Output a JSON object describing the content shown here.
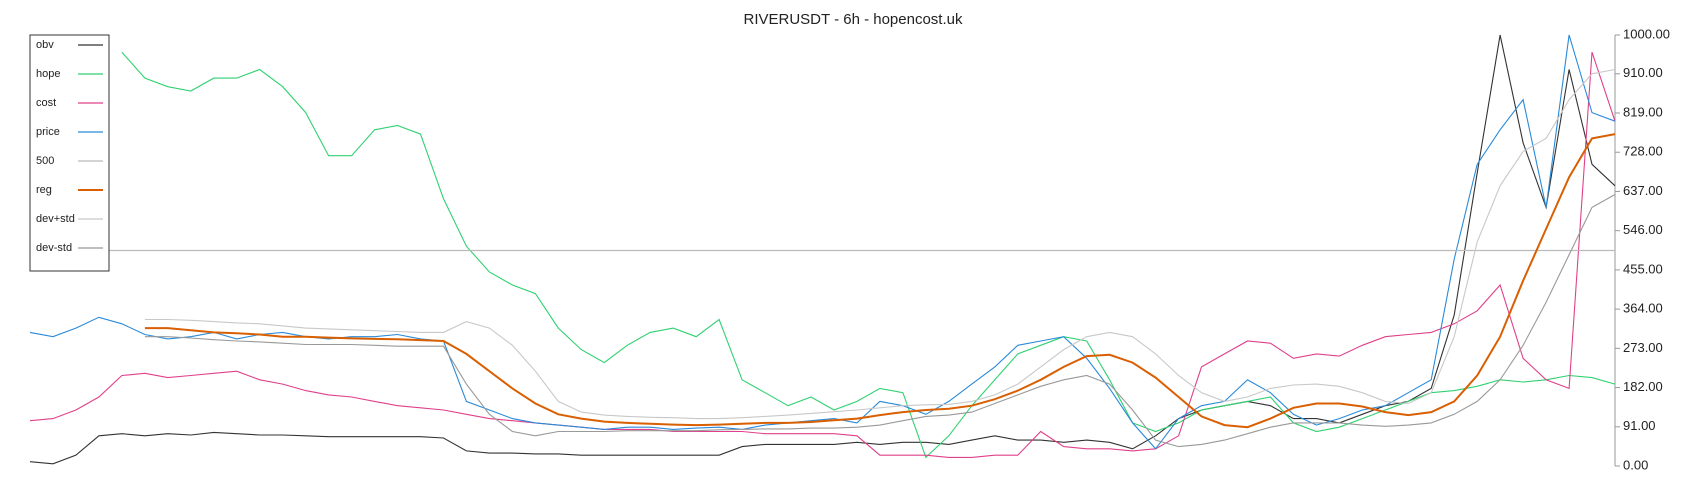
{
  "chart_data": {
    "type": "line",
    "title": "RIVERUSDT - 6h - hopencost.uk",
    "ylim": [
      0,
      1000
    ],
    "yticks": [
      {
        "value": 0,
        "label": "0.00"
      },
      {
        "value": 91,
        "label": "91.00"
      },
      {
        "value": 182,
        "label": "182.00"
      },
      {
        "value": 273,
        "label": "273.00"
      },
      {
        "value": 364,
        "label": "364.00"
      },
      {
        "value": 455,
        "label": "455.00"
      },
      {
        "value": 546,
        "label": "546.00"
      },
      {
        "value": 637,
        "label": "637.00"
      },
      {
        "value": 728,
        "label": "728.00"
      },
      {
        "value": 819,
        "label": "819.00"
      },
      {
        "value": 910,
        "label": "910.00"
      },
      {
        "value": 1000,
        "label": "1000.00"
      }
    ],
    "legend": "upper-left",
    "series": [
      {
        "name": "obv",
        "color": "#333333",
        "values": [
          10,
          5,
          25,
          70,
          75,
          70,
          75,
          72,
          78,
          75,
          72,
          72,
          70,
          68,
          68,
          68,
          68,
          68,
          65,
          35,
          30,
          30,
          28,
          28,
          25,
          25,
          25,
          25,
          25,
          25,
          25,
          45,
          50,
          50,
          50,
          50,
          55,
          50,
          55,
          55,
          50,
          60,
          70,
          60,
          60,
          55,
          60,
          55,
          40,
          70,
          110,
          130,
          140,
          150,
          140,
          110,
          110,
          100,
          120,
          140,
          150,
          180,
          350,
          680,
          1000,
          750,
          600,
          920,
          700,
          650
        ]
      },
      {
        "name": "hope",
        "color": "#2fd170",
        "values": [
          null,
          null,
          null,
          null,
          960,
          900,
          880,
          870,
          900,
          900,
          920,
          880,
          820,
          720,
          720,
          780,
          790,
          770,
          620,
          510,
          450,
          420,
          400,
          320,
          270,
          240,
          280,
          310,
          320,
          300,
          340,
          200,
          170,
          140,
          160,
          130,
          150,
          180,
          170,
          20,
          70,
          140,
          200,
          260,
          280,
          300,
          290,
          200,
          100,
          80,
          100,
          130,
          140,
          150,
          160,
          100,
          80,
          90,
          110,
          130,
          150,
          170,
          175,
          185,
          200,
          195,
          200,
          210,
          205,
          190
        ]
      },
      {
        "name": "cost",
        "color": "#e0408a",
        "values": [
          105,
          110,
          130,
          160,
          210,
          215,
          205,
          210,
          215,
          220,
          200,
          190,
          175,
          165,
          160,
          150,
          140,
          135,
          130,
          120,
          110,
          105,
          100,
          95,
          90,
          85,
          85,
          85,
          80,
          80,
          80,
          80,
          75,
          75,
          75,
          75,
          70,
          25,
          25,
          25,
          20,
          20,
          25,
          25,
          80,
          45,
          40,
          40,
          35,
          40,
          70,
          230,
          260,
          290,
          285,
          250,
          260,
          255,
          280,
          300,
          305,
          310,
          330,
          360,
          420,
          250,
          200,
          180,
          960,
          800
        ]
      },
      {
        "name": "price",
        "color": "#2a8ad8",
        "values": [
          310,
          300,
          320,
          345,
          330,
          305,
          295,
          300,
          310,
          295,
          305,
          310,
          300,
          295,
          300,
          300,
          305,
          295,
          290,
          150,
          130,
          110,
          100,
          95,
          90,
          85,
          90,
          90,
          85,
          88,
          90,
          85,
          95,
          100,
          105,
          110,
          100,
          150,
          140,
          120,
          150,
          190,
          230,
          280,
          290,
          300,
          250,
          180,
          100,
          40,
          110,
          140,
          150,
          200,
          170,
          120,
          95,
          110,
          130,
          140,
          170,
          200,
          480,
          700,
          780,
          850,
          600,
          1000,
          820,
          800
        ]
      },
      {
        "name": "500",
        "color": "#bbbbbb",
        "value": 500
      },
      {
        "name": "reg",
        "color": "#d95f02",
        "width": 2,
        "values": [
          null,
          null,
          null,
          null,
          null,
          320,
          320,
          315,
          310,
          308,
          305,
          300,
          300,
          298,
          296,
          295,
          294,
          292,
          290,
          260,
          220,
          180,
          145,
          120,
          110,
          103,
          100,
          98,
          96,
          95,
          96,
          98,
          100,
          100,
          102,
          106,
          110,
          118,
          125,
          130,
          133,
          140,
          155,
          175,
          200,
          230,
          255,
          258,
          240,
          205,
          160,
          115,
          95,
          90,
          110,
          135,
          145,
          145,
          138,
          125,
          118,
          125,
          150,
          210,
          300,
          430,
          550,
          670,
          760,
          770
        ]
      },
      {
        "name": "dev+std",
        "color": "#c8c8c8",
        "values": [
          null,
          null,
          null,
          null,
          null,
          340,
          340,
          338,
          335,
          332,
          330,
          325,
          320,
          318,
          316,
          314,
          312,
          310,
          310,
          335,
          320,
          280,
          220,
          150,
          125,
          118,
          115,
          113,
          112,
          110,
          110,
          112,
          115,
          118,
          122,
          126,
          130,
          135,
          140,
          142,
          143,
          150,
          165,
          190,
          230,
          270,
          300,
          310,
          300,
          260,
          210,
          170,
          150,
          160,
          180,
          188,
          190,
          185,
          170,
          150,
          145,
          170,
          300,
          520,
          650,
          730,
          760,
          850,
          910,
          920
        ]
      },
      {
        "name": "dev-std",
        "color": "#999999",
        "values": [
          null,
          null,
          null,
          null,
          null,
          300,
          300,
          297,
          293,
          290,
          288,
          285,
          282,
          282,
          282,
          280,
          278,
          278,
          278,
          190,
          120,
          80,
          70,
          80,
          80,
          80,
          82,
          82,
          82,
          82,
          84,
          85,
          86,
          86,
          88,
          88,
          90,
          95,
          105,
          115,
          118,
          125,
          145,
          165,
          185,
          200,
          210,
          190,
          130,
          60,
          45,
          50,
          60,
          75,
          90,
          100,
          100,
          100,
          95,
          92,
          95,
          100,
          120,
          150,
          200,
          280,
          380,
          490,
          600,
          630
        ]
      }
    ]
  }
}
